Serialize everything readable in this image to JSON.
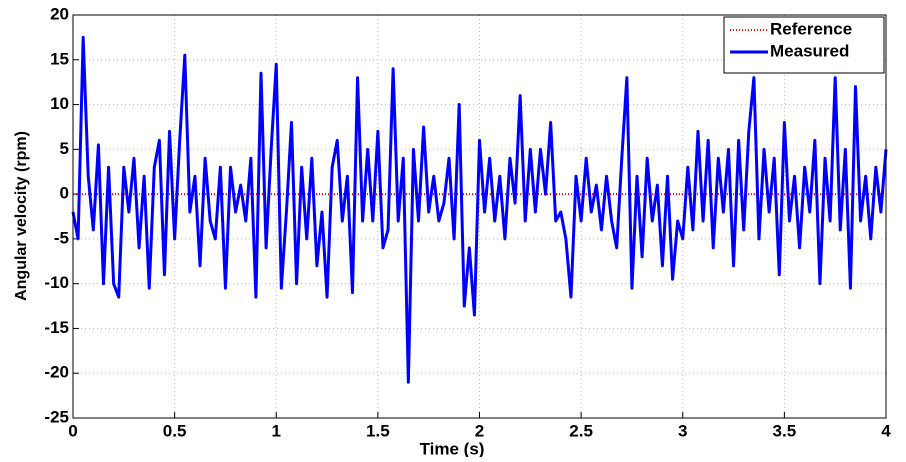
{
  "chart_data": {
    "type": "line",
    "xlabel": "Time (s)",
    "ylabel": "Angular velocity (rpm)",
    "xlim": [
      0,
      4
    ],
    "xticks": [
      0,
      0.5,
      1,
      1.5,
      2,
      2.5,
      3,
      3.5,
      4
    ],
    "ylim": [
      -25,
      20
    ],
    "yticks": [
      -25,
      -20,
      -15,
      -10,
      -5,
      0,
      5,
      10,
      15,
      20
    ],
    "grid": true,
    "legend": "northeast",
    "series": [
      {
        "name": "Reference",
        "color": "#ff0000",
        "style": "dotted",
        "x": [
          0,
          4
        ],
        "values": [
          0,
          0
        ]
      },
      {
        "name": "Measured",
        "color": "#0000ff",
        "style": "solid",
        "x": [
          0,
          0.025,
          0.05,
          0.075,
          0.1,
          0.125,
          0.15,
          0.175,
          0.2,
          0.225,
          0.25,
          0.275,
          0.3,
          0.325,
          0.35,
          0.375,
          0.4,
          0.425,
          0.45,
          0.475,
          0.5,
          0.525,
          0.55,
          0.575,
          0.6,
          0.625,
          0.65,
          0.675,
          0.7,
          0.725,
          0.75,
          0.775,
          0.8,
          0.825,
          0.85,
          0.875,
          0.9,
          0.925,
          0.95,
          0.975,
          1,
          1.025,
          1.05,
          1.075,
          1.1,
          1.125,
          1.15,
          1.175,
          1.2,
          1.225,
          1.25,
          1.275,
          1.3,
          1.325,
          1.35,
          1.375,
          1.4,
          1.425,
          1.45,
          1.475,
          1.5,
          1.525,
          1.55,
          1.575,
          1.6,
          1.625,
          1.65,
          1.675,
          1.7,
          1.725,
          1.75,
          1.775,
          1.8,
          1.825,
          1.85,
          1.875,
          1.9,
          1.925,
          1.95,
          1.975,
          2,
          2.025,
          2.05,
          2.075,
          2.1,
          2.125,
          2.15,
          2.175,
          2.2,
          2.225,
          2.25,
          2.275,
          2.3,
          2.325,
          2.35,
          2.375,
          2.4,
          2.425,
          2.45,
          2.475,
          2.5,
          2.525,
          2.55,
          2.575,
          2.6,
          2.625,
          2.65,
          2.675,
          2.7,
          2.725,
          2.75,
          2.775,
          2.8,
          2.825,
          2.85,
          2.875,
          2.9,
          2.925,
          2.95,
          2.975,
          3,
          3.025,
          3.05,
          3.075,
          3.1,
          3.125,
          3.15,
          3.175,
          3.2,
          3.225,
          3.25,
          3.275,
          3.3,
          3.325,
          3.35,
          3.375,
          3.4,
          3.425,
          3.45,
          3.475,
          3.5,
          3.525,
          3.55,
          3.575,
          3.6,
          3.625,
          3.65,
          3.675,
          3.7,
          3.725,
          3.75,
          3.775,
          3.8,
          3.825,
          3.85,
          3.875,
          3.9,
          3.925,
          3.95,
          3.975,
          4
        ],
        "values": [
          -2,
          -5,
          17.5,
          2,
          -4,
          5.5,
          -10,
          3,
          -10,
          -11.5,
          3,
          -2,
          4,
          -6,
          2,
          -10.5,
          3,
          6,
          -9,
          7,
          -5,
          6,
          15.5,
          -2,
          2,
          -8,
          4,
          -3,
          -5,
          3,
          -10.5,
          3,
          -2,
          1,
          -3,
          4,
          -11.5,
          13.5,
          -6,
          5,
          14.5,
          -10.5,
          -2,
          8,
          -10,
          3,
          -5,
          4,
          -8,
          -2,
          -11.5,
          3,
          6,
          -3,
          2,
          -11,
          13,
          -3,
          5,
          -3,
          7,
          -6,
          -4,
          14,
          -3,
          4,
          -21,
          5,
          -3,
          7.5,
          -2,
          2,
          -3,
          -1,
          4,
          -5,
          10,
          -12.5,
          -6,
          -13.5,
          6,
          -2,
          4,
          -3,
          2,
          -5,
          4,
          -1,
          11,
          -3,
          5,
          -2,
          5,
          0,
          8,
          -3,
          -2,
          -5,
          -11.5,
          2,
          -3,
          4,
          -2,
          1,
          -4,
          2,
          -3,
          -6,
          4,
          13,
          -10.5,
          2,
          -7,
          4,
          -3,
          1,
          -8,
          2,
          -9.5,
          -3,
          -5,
          3,
          -4,
          7,
          -3,
          6,
          -6,
          4,
          -2,
          5,
          -8,
          6,
          -4,
          7,
          13,
          -5,
          5,
          -2,
          4,
          -9,
          8,
          -3,
          2,
          -6,
          3,
          -2,
          6,
          -10,
          4,
          -3,
          13,
          -4,
          5,
          -10.5,
          12,
          -3,
          2,
          -5,
          3,
          -2,
          5
        ]
      }
    ]
  }
}
